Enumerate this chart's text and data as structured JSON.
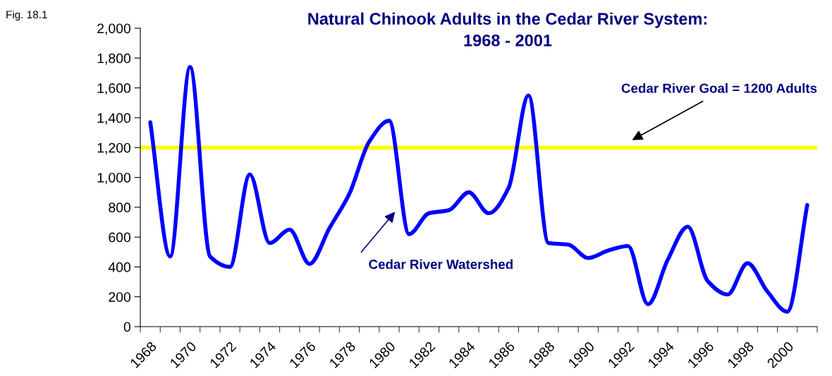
{
  "chart_data": {
    "type": "line",
    "title": "Natural Chinook Adults in the Cedar River System:\n1968 - 2001",
    "categories": [
      "1968",
      null,
      "1970",
      null,
      "1972",
      null,
      "1974",
      null,
      "1976",
      null,
      "1978",
      null,
      "1980",
      null,
      "1982",
      null,
      "1984",
      null,
      "1986",
      null,
      "1988",
      null,
      "1990",
      null,
      "1992",
      null,
      "1994",
      null,
      "1996",
      null,
      "1998",
      null,
      "2000",
      null
    ],
    "series": [
      {
        "name": "Cedar River Watershed",
        "color": "#0000ff",
        "values": [
          1370,
          470,
          1740,
          470,
          400,
          1020,
          560,
          650,
          420,
          660,
          890,
          1240,
          1380,
          620,
          760,
          780,
          900,
          760,
          930,
          1550,
          560,
          550,
          460,
          510,
          540,
          150,
          450,
          670,
          305,
          215,
          425,
          235,
          100,
          815
        ]
      }
    ],
    "ylim": [
      0,
      2000
    ],
    "yticks": [
      0,
      200,
      400,
      600,
      800,
      {
        "value": 1000,
        "label": "1,000"
      },
      {
        "value": 1200,
        "label": "1,200"
      },
      {
        "value": 1400,
        "label": "1,400"
      },
      {
        "value": 1600,
        "label": "1,600"
      },
      {
        "value": 1800,
        "label": "1,800"
      },
      {
        "value": 2000,
        "label": "2,000"
      }
    ],
    "ref_lines": [
      {
        "axis": "y",
        "value": 1200,
        "label": "Cedar River Goal = 1200 Adults",
        "color": "#ffff00"
      }
    ],
    "annotations": [
      "Fig. 18.1"
    ],
    "grid": false,
    "legend": false,
    "marker": "none",
    "line_style": "solid"
  }
}
